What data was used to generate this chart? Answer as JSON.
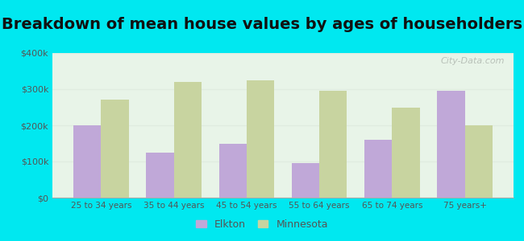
{
  "title": "Breakdown of mean house values by ages of householders",
  "categories": [
    "25 to 34 years",
    "35 to 44 years",
    "45 to 54 years",
    "55 to 64 years",
    "65 to 74 years",
    "75 years+"
  ],
  "elkton_values": [
    200000,
    125000,
    150000,
    95000,
    160000,
    295000
  ],
  "minnesota_values": [
    270000,
    320000,
    325000,
    295000,
    248000,
    200000
  ],
  "elkton_color": "#c0a8d8",
  "minnesota_color": "#c8d4a0",
  "background_outer": "#00e8f0",
  "background_inner_top": "#e8f4e8",
  "background_inner_bottom": "#d8ecd8",
  "ylim": [
    0,
    400000
  ],
  "yticks": [
    0,
    100000,
    200000,
    300000,
    400000
  ],
  "ytick_labels": [
    "$0",
    "$100k",
    "$200k",
    "$300k",
    "$400k"
  ],
  "legend_elkton": "Elkton",
  "legend_minnesota": "Minnesota",
  "title_fontsize": 14,
  "bar_width": 0.38,
  "watermark": "City-Data.com",
  "grid_color": "#e0ece0",
  "tick_color": "#555555",
  "title_color": "#111111"
}
